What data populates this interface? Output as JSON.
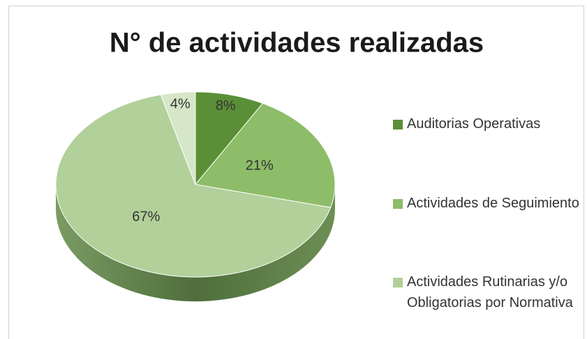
{
  "chart_data": {
    "type": "pie",
    "title": "N° de actividades realizadas",
    "categories": [
      "Auditorias Operativas",
      "Actividades de Seguimiento",
      "Actividades Rutinarias y/o Obligatorias por Normativa",
      null
    ],
    "values": [
      8,
      21,
      67,
      4
    ],
    "value_labels": [
      "8%",
      "21%",
      "67%",
      "4%"
    ],
    "colors": [
      "#5b8f37",
      "#8dbd68",
      "#b1d09a",
      "#d6e6c9"
    ],
    "legend": "right"
  }
}
